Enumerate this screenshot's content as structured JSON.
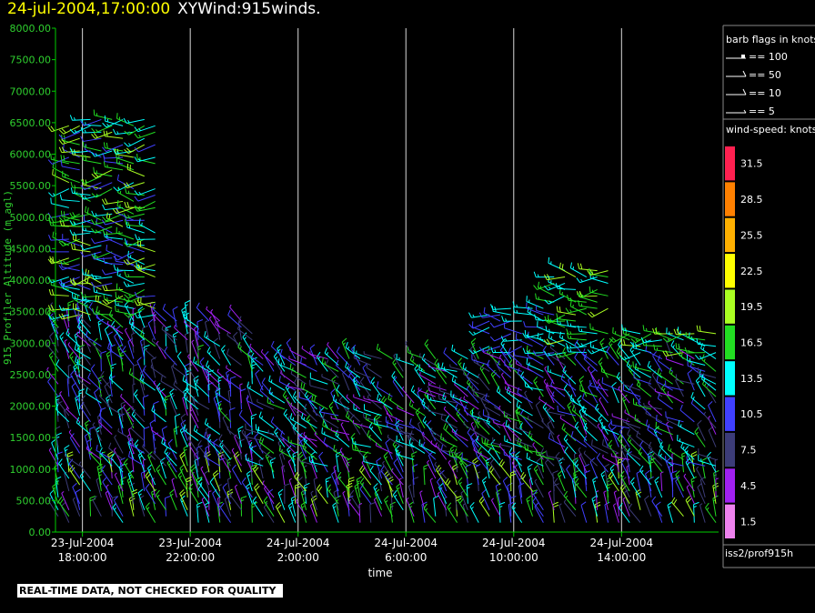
{
  "header": {
    "date": "24-jul-2004,17:00:00",
    "title": "XYWind:915winds."
  },
  "warning": "REAL-TIME DATA, NOT CHECKED FOR QUALITY",
  "legend": {
    "barb_title": "barb flags in knots",
    "barbs": [
      "== 100",
      "== 50",
      "== 10",
      "== 5"
    ],
    "speed_title": "wind-speed: knots",
    "source": "iss2/prof915h"
  },
  "colors": {
    "background": "#000000",
    "axis": "#00cc00",
    "tick_label": "#2fd02f",
    "gridline": "#d8d8d8",
    "header_date": "#ffff00"
  },
  "chart_data": {
    "type": "scatter",
    "subtype": "wind-barb time-height",
    "ylabel": "915 Profiler Altitude (m agl)",
    "xlabel": "time",
    "ylim": [
      0,
      8000
    ],
    "yticks": [
      "0.00",
      "500.00",
      "1000.00",
      "1500.00",
      "2000.00",
      "2500.00",
      "3000.00",
      "3500.00",
      "4000.00",
      "4500.00",
      "5000.00",
      "5500.00",
      "6000.00",
      "6500.00",
      "7000.00",
      "7500.00",
      "8000.00"
    ],
    "xlim_hours": [
      17.0,
      41.6
    ],
    "xticks": [
      {
        "date": "23-Jul-2004",
        "time": "18:00:00",
        "hour": 18
      },
      {
        "date": "23-Jul-2004",
        "time": "22:00:00",
        "hour": 22
      },
      {
        "date": "24-Jul-2004",
        "time": "2:00:00",
        "hour": 26
      },
      {
        "date": "24-Jul-2004",
        "time": "6:00:00",
        "hour": 30
      },
      {
        "date": "24-Jul-2004",
        "time": "10:00:00",
        "hour": 34
      },
      {
        "date": "24-Jul-2004",
        "time": "14:00:00",
        "hour": 38
      }
    ],
    "grid": "vertical",
    "colorbar": {
      "labels": [
        "1.5",
        "4.5",
        "7.5",
        "10.5",
        "13.5",
        "16.5",
        "19.5",
        "22.5",
        "25.5",
        "28.5",
        "31.5"
      ],
      "colors": [
        "#ee82ee",
        "#a020f0",
        "#3c3c78",
        "#4040ff",
        "#00ffff",
        "#22dd22",
        "#aaff22",
        "#ffff00",
        "#ffb000",
        "#ff8000",
        "#ff2050"
      ]
    },
    "barbs": {
      "times_hours": [
        17.1,
        17.5,
        17.9,
        18.3,
        18.7,
        19.1,
        19.5,
        19.9,
        20.3,
        20.7,
        21.1,
        21.5,
        21.9,
        22.3,
        22.7,
        23.1,
        23.5,
        23.9,
        24.3,
        24.7,
        25.1,
        25.5,
        25.9,
        26.3,
        26.7,
        27.1,
        27.5,
        27.9,
        28.3,
        28.7,
        29.1,
        29.5,
        29.9,
        30.3,
        30.7,
        31.1,
        31.5,
        31.9,
        32.3,
        32.7,
        33.1,
        33.5,
        33.9,
        34.3,
        34.7,
        35.1,
        35.5,
        35.9,
        36.3,
        36.7,
        37.1,
        37.5,
        37.9,
        38.3,
        38.7,
        39.1,
        39.5,
        39.9,
        40.3,
        40.7,
        41.1,
        41.5
      ],
      "altitudes_m": [
        150,
        250,
        350,
        450,
        550,
        650,
        750,
        850,
        950,
        1050,
        1150,
        1250,
        1350,
        1450,
        1550,
        1650,
        1750,
        1850,
        1950,
        2050,
        2150,
        2250,
        2350,
        2450,
        2550,
        2650,
        2750,
        2850,
        2950,
        3050,
        3150,
        3250,
        3350,
        3450,
        3550,
        3650,
        3750,
        3850,
        3950,
        4050,
        4150,
        4250,
        4350,
        4450,
        4550,
        4650,
        4750,
        4850,
        4950,
        5050,
        5150,
        5250,
        5350,
        5450,
        5550,
        5650,
        5750,
        5850,
        5950,
        6050,
        6150,
        6250,
        6350,
        6450,
        6550
      ],
      "regions": [
        {
          "t": [
            17.0,
            41.6
          ],
          "z": [
            100,
            1000
          ],
          "speed": [
            3,
            20
          ],
          "dir": [
            320,
            360
          ]
        },
        {
          "t": [
            17.0,
            24.5
          ],
          "z": [
            1000,
            3400
          ],
          "speed": [
            4,
            16
          ],
          "dir": [
            300,
            360
          ]
        },
        {
          "t": [
            24.5,
            41.6
          ],
          "z": [
            1000,
            2800
          ],
          "speed": [
            4,
            18
          ],
          "dir": [
            280,
            340
          ]
        },
        {
          "t": [
            17.2,
            20.8
          ],
          "z": [
            3400,
            6600
          ],
          "speed": [
            10,
            20
          ],
          "dir": [
            240,
            300
          ]
        },
        {
          "t": [
            33.0,
            35.8
          ],
          "z": [
            2800,
            3600
          ],
          "speed": [
            10,
            15
          ],
          "dir": [
            240,
            300
          ]
        },
        {
          "t": [
            35.5,
            37.5
          ],
          "z": [
            2800,
            4200
          ],
          "speed": [
            13,
            19
          ],
          "dir": [
            240,
            300
          ]
        },
        {
          "t": [
            38.0,
            41.6
          ],
          "z": [
            2500,
            3200
          ],
          "speed": [
            13,
            19
          ],
          "dir": [
            240,
            300
          ]
        }
      ]
    }
  }
}
